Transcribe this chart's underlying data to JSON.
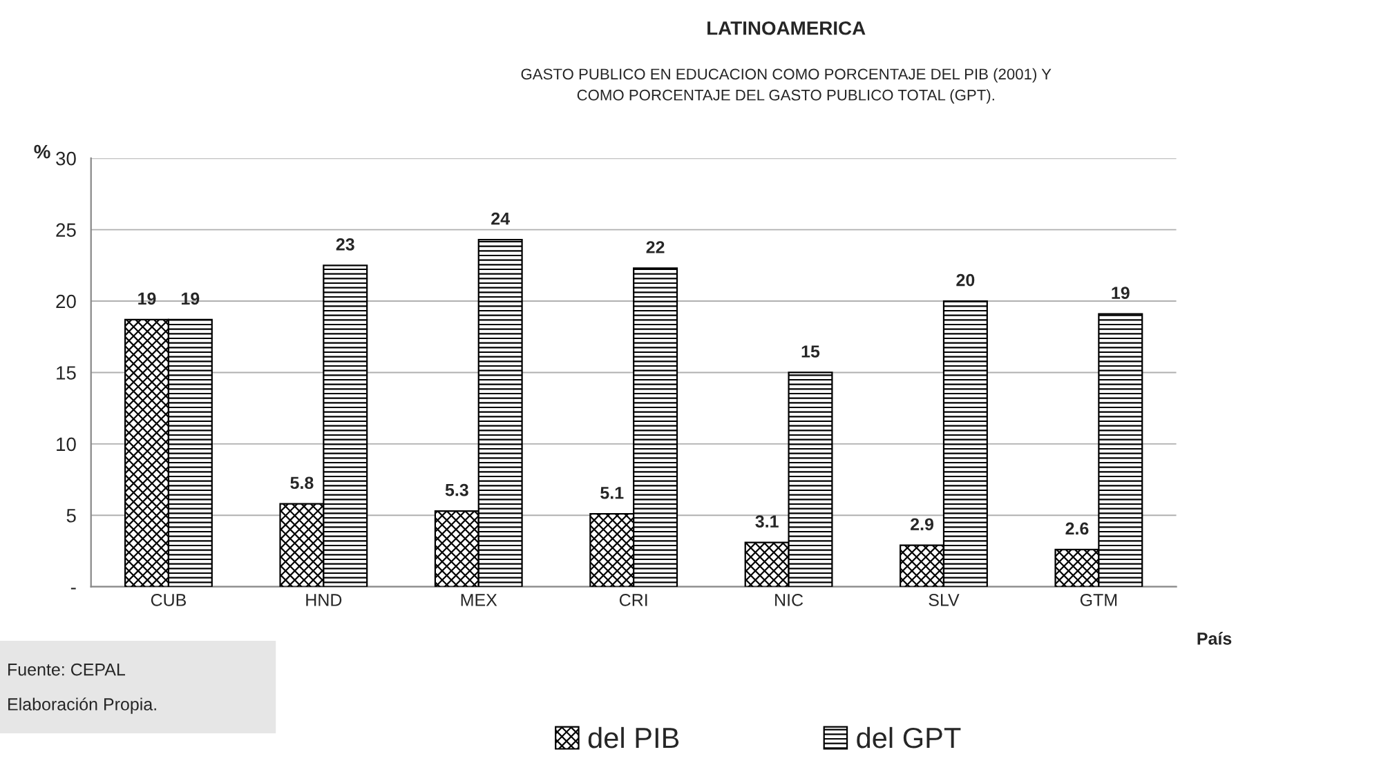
{
  "chart_data": {
    "type": "bar",
    "title": "LATINOAMERICA",
    "subtitle": "GASTO PUBLICO EN EDUCACION COMO PORCENTAJE DEL PIB (2001) Y\nCOMO PORCENTAJE DEL GASTO PUBLICO TOTAL (GPT).",
    "xlabel": "País",
    "ylabel": "%",
    "categories": [
      "CUB",
      "HND",
      "MEX",
      "CRI",
      "NIC",
      "SLV",
      "GTM"
    ],
    "series": [
      {
        "name": "del PIB",
        "color": "#000000",
        "values": [
          18.7,
          5.8,
          5.3,
          5.1,
          3.1,
          2.9,
          2.6
        ],
        "value_labels": [
          "19",
          "5.8",
          "5.3",
          "5.1",
          "3.1",
          "2.9",
          "2.6"
        ]
      },
      {
        "name": "del GPT",
        "color": "#000000",
        "values": [
          18.7,
          22.5,
          24.3,
          22.3,
          15.0,
          20.0,
          19.1
        ],
        "value_labels": [
          "19",
          "23",
          "24",
          "22",
          "15",
          "20",
          "19"
        ]
      }
    ],
    "ylim": [
      0,
      30
    ],
    "yticks": [
      {
        "value": 0,
        "label": "-"
      },
      5,
      10,
      15,
      20,
      25,
      30
    ],
    "grid": "y",
    "legend": "bottom",
    "annotations": [
      "Fuente: CEPAL",
      "Elaboración Propia."
    ]
  }
}
